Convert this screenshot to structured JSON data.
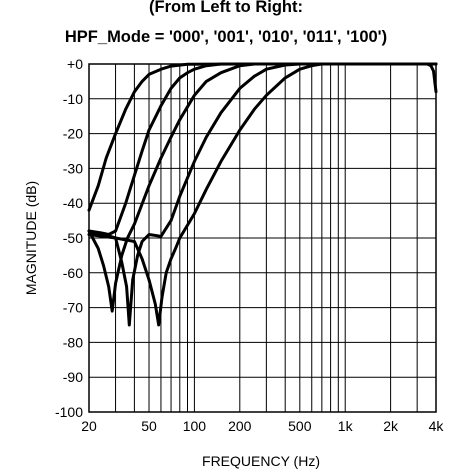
{
  "chart_data": {
    "type": "line",
    "title_lines": [
      "(From Left to Right:",
      "HPF_Mode = '000', '001', '010', '011', '100')"
    ],
    "xlabel": "FREQUENCY (Hz)",
    "ylabel": "MAGNITUDE (dB)",
    "x_scale": "log",
    "xlim": [
      20,
      4000
    ],
    "ylim": [
      -100,
      0
    ],
    "grid": true,
    "x_tick_values": [
      20,
      50,
      100,
      200,
      500,
      1000,
      2000,
      4000
    ],
    "x_tick_labels": [
      "20",
      "50",
      "100",
      "200",
      "500",
      "1k",
      "2k",
      "4k"
    ],
    "y_tick_values": [
      0,
      -10,
      -20,
      -30,
      -40,
      -50,
      -60,
      -70,
      -80,
      -90,
      -100
    ],
    "y_tick_labels": [
      "+0",
      "-10",
      "-20",
      "-30",
      "-40",
      "-50",
      "-60",
      "-70",
      "-80",
      "-90",
      "-100"
    ],
    "series": [
      {
        "points": [
          [
            20,
            -42
          ],
          [
            23,
            -35
          ],
          [
            26,
            -27
          ],
          [
            30,
            -20
          ],
          [
            35,
            -13
          ],
          [
            40,
            -8
          ],
          [
            45,
            -5
          ],
          [
            50,
            -3
          ],
          [
            60,
            -1.5
          ],
          [
            70,
            -0.6
          ],
          [
            90,
            -0.1
          ],
          [
            200,
            0
          ],
          [
            1000,
            0
          ],
          [
            3500,
            0
          ],
          [
            3700,
            -0.5
          ],
          [
            3850,
            -2
          ],
          [
            4000,
            -8
          ]
        ]
      },
      {
        "points": [
          [
            20,
            -48
          ],
          [
            24,
            -48.5
          ],
          [
            27,
            -49
          ],
          [
            30,
            -48
          ],
          [
            35,
            -40
          ],
          [
            40,
            -32
          ],
          [
            45,
            -25
          ],
          [
            50,
            -19
          ],
          [
            60,
            -12
          ],
          [
            70,
            -7
          ],
          [
            80,
            -4
          ],
          [
            90,
            -2.5
          ],
          [
            100,
            -1.5
          ],
          [
            120,
            -0.5
          ],
          [
            150,
            0
          ],
          [
            500,
            0
          ],
          [
            4000,
            0
          ]
        ]
      },
      {
        "points": [
          [
            20,
            -48
          ],
          [
            23,
            -53
          ],
          [
            25,
            -58
          ],
          [
            27,
            -64
          ],
          [
            28.5,
            -71
          ],
          [
            30,
            -63
          ],
          [
            33,
            -55
          ],
          [
            36,
            -50
          ],
          [
            40,
            -46
          ],
          [
            50,
            -35
          ],
          [
            60,
            -27
          ],
          [
            70,
            -21
          ],
          [
            80,
            -16
          ],
          [
            100,
            -9
          ],
          [
            120,
            -5
          ],
          [
            150,
            -2.5
          ],
          [
            200,
            -0.5
          ],
          [
            250,
            0
          ],
          [
            4000,
            0
          ]
        ]
      },
      {
        "points": [
          [
            20,
            -49
          ],
          [
            25,
            -49
          ],
          [
            30,
            -50
          ],
          [
            33,
            -57
          ],
          [
            35.5,
            -64
          ],
          [
            37,
            -75
          ],
          [
            39,
            -62
          ],
          [
            42,
            -55
          ],
          [
            45,
            -51
          ],
          [
            50,
            -49
          ],
          [
            60,
            -49.5
          ],
          [
            70,
            -45
          ],
          [
            80,
            -38
          ],
          [
            100,
            -28
          ],
          [
            120,
            -21
          ],
          [
            150,
            -14
          ],
          [
            200,
            -7
          ],
          [
            250,
            -3.5
          ],
          [
            300,
            -1.5
          ],
          [
            400,
            -0.3
          ],
          [
            500,
            0
          ],
          [
            4000,
            0
          ]
        ]
      },
      {
        "points": [
          [
            20,
            -49
          ],
          [
            30,
            -50
          ],
          [
            40,
            -51
          ],
          [
            45,
            -56
          ],
          [
            50,
            -62
          ],
          [
            55,
            -69
          ],
          [
            58,
            -75
          ],
          [
            61,
            -67
          ],
          [
            65,
            -60
          ],
          [
            70,
            -56
          ],
          [
            75,
            -53
          ],
          [
            80,
            -50
          ],
          [
            100,
            -43
          ],
          [
            120,
            -36
          ],
          [
            150,
            -28
          ],
          [
            200,
            -19
          ],
          [
            250,
            -13
          ],
          [
            300,
            -9
          ],
          [
            400,
            -4
          ],
          [
            500,
            -1.5
          ],
          [
            600,
            -0.5
          ],
          [
            700,
            0
          ],
          [
            4000,
            0
          ]
        ]
      }
    ]
  }
}
